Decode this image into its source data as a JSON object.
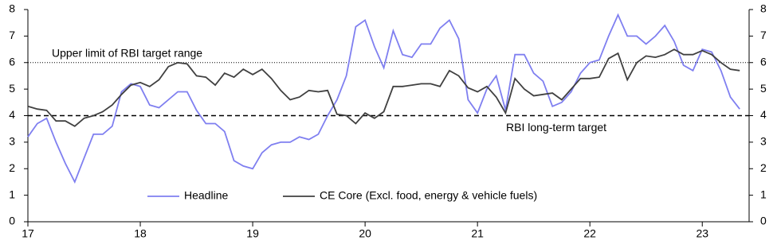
{
  "chart_data": {
    "type": "line",
    "x": [
      0,
      1,
      2,
      3,
      4,
      5,
      6,
      7,
      8,
      9,
      10,
      11,
      12,
      13,
      14,
      15,
      16,
      17,
      18,
      19,
      20,
      21,
      22,
      23,
      24,
      25,
      26,
      27,
      28,
      29,
      30,
      31,
      32,
      33,
      34,
      35,
      36,
      37,
      38,
      39,
      40,
      41,
      42,
      43,
      44,
      45,
      46,
      47,
      48,
      49,
      50,
      51,
      52,
      53,
      54,
      55,
      56,
      57,
      58,
      59,
      60,
      61,
      62,
      63,
      64,
      65,
      66,
      67,
      68,
      69,
      70,
      71,
      72,
      73,
      74,
      75,
      76
    ],
    "xlim": [
      0,
      77
    ],
    "xticks": [
      {
        "value": 0,
        "label": "17"
      },
      {
        "value": 12,
        "label": "18"
      },
      {
        "value": 24,
        "label": "19"
      },
      {
        "value": 36,
        "label": "20"
      },
      {
        "value": 48,
        "label": "21"
      },
      {
        "value": 60,
        "label": "22"
      },
      {
        "value": 72,
        "label": "23"
      }
    ],
    "ylim": [
      0,
      8
    ],
    "yticks": [
      0,
      1,
      2,
      3,
      4,
      5,
      6,
      7,
      8
    ],
    "y2lim": [
      0,
      8
    ],
    "y2ticks": [
      0,
      1,
      2,
      3,
      4,
      5,
      6,
      7,
      8
    ],
    "series": [
      {
        "name": "Headline",
        "color": "#7f7ff0",
        "values": [
          3.2,
          3.7,
          3.9,
          3.0,
          2.2,
          1.5,
          2.4,
          3.3,
          3.3,
          3.6,
          4.9,
          5.2,
          5.1,
          4.4,
          4.3,
          4.6,
          4.9,
          4.9,
          4.2,
          3.7,
          3.7,
          3.4,
          2.3,
          2.1,
          2.0,
          2.6,
          2.9,
          3.0,
          3.0,
          3.2,
          3.1,
          3.3,
          4.0,
          4.6,
          5.5,
          7.35,
          7.6,
          6.6,
          5.8,
          7.2,
          6.3,
          6.2,
          6.7,
          6.7,
          7.3,
          7.6,
          6.9,
          4.6,
          4.1,
          5.0,
          5.5,
          4.2,
          6.3,
          6.3,
          5.6,
          5.3,
          4.35,
          4.5,
          4.9,
          5.6,
          6.0,
          6.1,
          7.0,
          7.8,
          7.0,
          7.0,
          6.7,
          7.0,
          7.4,
          6.8,
          5.9,
          5.7,
          6.5,
          6.4,
          5.7,
          4.7,
          4.25
        ]
      },
      {
        "name": "CE Core (Excl. food, energy & vehicle fuels)",
        "color": "#404040",
        "values": [
          4.35,
          4.25,
          4.2,
          3.8,
          3.8,
          3.6,
          3.9,
          4.0,
          4.15,
          4.4,
          4.8,
          5.15,
          5.25,
          5.1,
          5.35,
          5.85,
          6.0,
          5.95,
          5.5,
          5.45,
          5.15,
          5.6,
          5.45,
          5.75,
          5.55,
          5.75,
          5.4,
          4.95,
          4.6,
          4.7,
          4.95,
          4.9,
          4.95,
          4.05,
          4.0,
          3.7,
          4.1,
          3.9,
          4.15,
          5.1,
          5.1,
          5.15,
          5.2,
          5.2,
          5.1,
          5.7,
          5.5,
          5.05,
          4.9,
          5.1,
          4.7,
          4.1,
          5.4,
          5.0,
          4.75,
          4.8,
          4.85,
          4.6,
          5.0,
          5.4,
          5.4,
          5.45,
          6.15,
          6.35,
          5.35,
          6.0,
          6.25,
          6.2,
          6.3,
          6.5,
          6.3,
          6.3,
          6.45,
          6.3,
          6.0,
          5.75,
          5.7
        ]
      }
    ],
    "reference_lines": [
      {
        "value": 6,
        "label": "Upper limit of RBI target range",
        "style": "dotted"
      },
      {
        "value": 4,
        "label": "RBI long-term target",
        "style": "dashed"
      }
    ]
  }
}
